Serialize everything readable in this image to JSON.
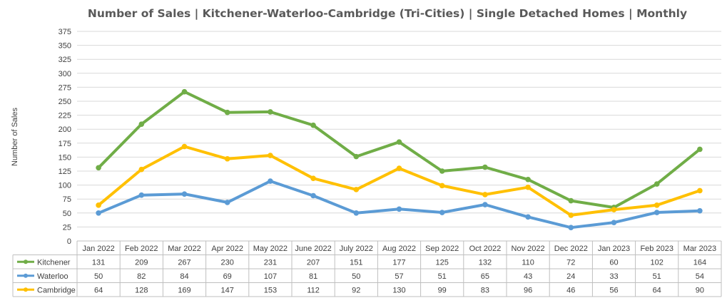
{
  "chart_data": {
    "type": "line",
    "title": "Number of Sales | Kitchener-Waterloo-Cambridge (Tri-Cities) | Single Detached Homes | Monthly",
    "xlabel": "",
    "ylabel": "Number of Sales",
    "ylim": [
      0,
      375
    ],
    "yticks": [
      0,
      25,
      50,
      75,
      100,
      125,
      150,
      175,
      200,
      225,
      250,
      275,
      300,
      325,
      350,
      375
    ],
    "grid": true,
    "legend": "data-table-left",
    "categories": [
      "Jan 2022",
      "Feb 2022",
      "Mar 2022",
      "Apr 2022",
      "May 2022",
      "June 2022",
      "July 2022",
      "Aug 2022",
      "Sep 2022",
      "Oct 2022",
      "Nov 2022",
      "Dec 2022",
      "Jan 2023",
      "Feb 2023",
      "Mar 2023"
    ],
    "series": [
      {
        "name": "Kitchener",
        "color": "#70AD47",
        "values": [
          131,
          209,
          267,
          230,
          231,
          207,
          151,
          177,
          125,
          132,
          110,
          72,
          60,
          102,
          164
        ]
      },
      {
        "name": "Waterloo",
        "color": "#5B9BD5",
        "values": [
          50,
          82,
          84,
          69,
          107,
          81,
          50,
          57,
          51,
          65,
          43,
          24,
          33,
          51,
          54
        ]
      },
      {
        "name": "Cambridge",
        "color": "#FFC000",
        "values": [
          64,
          128,
          169,
          147,
          153,
          112,
          92,
          130,
          99,
          83,
          96,
          46,
          56,
          64,
          90
        ]
      }
    ]
  }
}
